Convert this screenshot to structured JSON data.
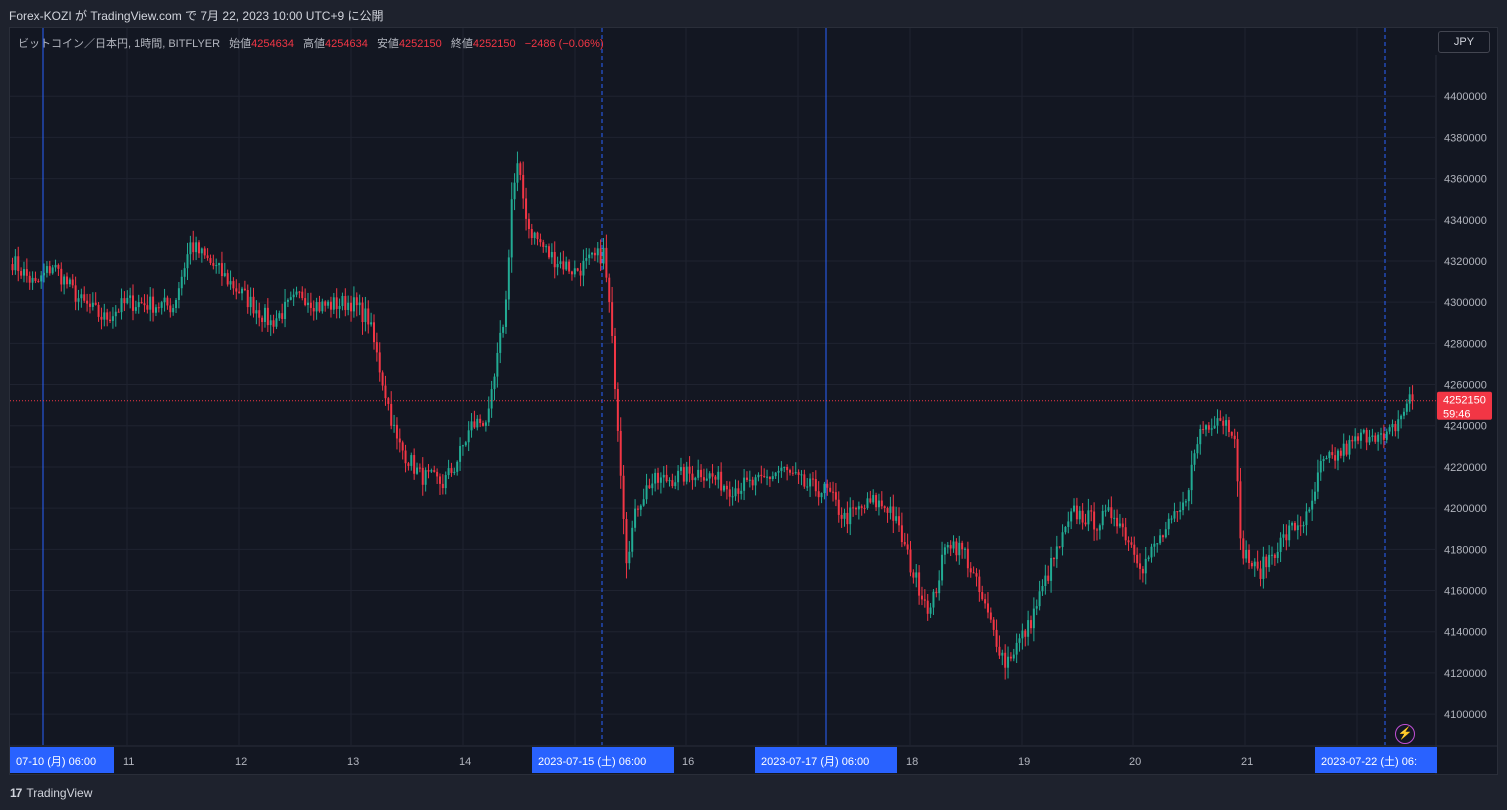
{
  "header": {
    "published_text": "Forex-KOZI が TradingView.com で 7月 22, 2023 10:00 UTC+9 に公開"
  },
  "legend": {
    "symbol": "ビットコイン／日本円, 1時間, BITFLYER",
    "open_label": "始値",
    "open": "4254634",
    "high_label": "高値",
    "high": "4254634",
    "low_label": "安値",
    "low": "4252150",
    "close_label": "終値",
    "close": "4252150",
    "change": "−2486 (−0.06%)"
  },
  "currency_button": "JPY",
  "price_badge": {
    "price": "4252150",
    "countdown": "59:46"
  },
  "footer": {
    "logo_text": "TradingView",
    "logo_mark": "17"
  },
  "colors": {
    "up": "#22ab94",
    "down": "#f23645",
    "bg": "#131722",
    "grid": "#1f2330",
    "session_line": "#2962ff",
    "label_bg": "#2962ff"
  },
  "chart_data": {
    "type": "candlestick",
    "y_axis": {
      "min": 4085000,
      "max": 4420000,
      "ticks": [
        4100000,
        4120000,
        4140000,
        4160000,
        4180000,
        4200000,
        4220000,
        4240000,
        4260000,
        4280000,
        4300000,
        4320000,
        4340000,
        4360000,
        4380000,
        4400000
      ]
    },
    "x_axis": {
      "ticks": [
        "11",
        "12",
        "13",
        "14",
        "16",
        "18",
        "19",
        "20",
        "21"
      ],
      "highlighted_labels": [
        "07-10 (月)  06:00",
        "2023-07-15 (土)  06:00",
        "2023-07-17 (月)  06:00",
        "2023-07-22 (土)  06:"
      ]
    },
    "last_price": 4252150,
    "anchors": [
      [
        0,
        4320000
      ],
      [
        8,
        4308000
      ],
      [
        14,
        4318000
      ],
      [
        24,
        4300000
      ],
      [
        32,
        4292000
      ],
      [
        40,
        4300000
      ],
      [
        56,
        4298000
      ],
      [
        62,
        4328000
      ],
      [
        72,
        4315000
      ],
      [
        90,
        4290000
      ],
      [
        101,
        4304000
      ],
      [
        107,
        4298000
      ],
      [
        118,
        4300000
      ],
      [
        124,
        4292000
      ],
      [
        134,
        4232000
      ],
      [
        142,
        4216000
      ],
      [
        150,
        4212000
      ],
      [
        154,
        4220000
      ],
      [
        160,
        4240000
      ],
      [
        166,
        4244000
      ],
      [
        172,
        4300000
      ],
      [
        174,
        4350000
      ],
      [
        176,
        4365000
      ],
      [
        180,
        4336000
      ],
      [
        187,
        4323000
      ],
      [
        196,
        4315000
      ],
      [
        204,
        4322000
      ],
      [
        206,
        4324000
      ],
      [
        208,
        4298000
      ],
      [
        210,
        4262000
      ],
      [
        214,
        4177000
      ],
      [
        218,
        4202000
      ],
      [
        222,
        4212000
      ],
      [
        240,
        4218000
      ],
      [
        250,
        4210000
      ],
      [
        260,
        4212000
      ],
      [
        268,
        4219000
      ],
      [
        276,
        4211000
      ],
      [
        284,
        4208000
      ],
      [
        290,
        4195000
      ],
      [
        300,
        4203000
      ],
      [
        306,
        4200000
      ],
      [
        310,
        4185000
      ],
      [
        314,
        4168000
      ],
      [
        320,
        4150000
      ],
      [
        326,
        4185000
      ],
      [
        332,
        4178000
      ],
      [
        338,
        4155000
      ],
      [
        346,
        4125000
      ],
      [
        354,
        4142000
      ],
      [
        362,
        4172000
      ],
      [
        370,
        4198000
      ],
      [
        378,
        4193000
      ],
      [
        384,
        4198000
      ],
      [
        394,
        4172000
      ],
      [
        400,
        4185000
      ],
      [
        408,
        4200000
      ],
      [
        414,
        4238000
      ],
      [
        420,
        4245000
      ],
      [
        426,
        4238000
      ],
      [
        428,
        4182000
      ],
      [
        434,
        4168000
      ],
      [
        440,
        4180000
      ],
      [
        446,
        4190000
      ],
      [
        452,
        4196000
      ],
      [
        456,
        4220000
      ],
      [
        464,
        4228000
      ],
      [
        474,
        4238000
      ],
      [
        478,
        4232000
      ],
      [
        482,
        4240000
      ],
      [
        487,
        4253000
      ],
      [
        488,
        4252150
      ]
    ]
  }
}
